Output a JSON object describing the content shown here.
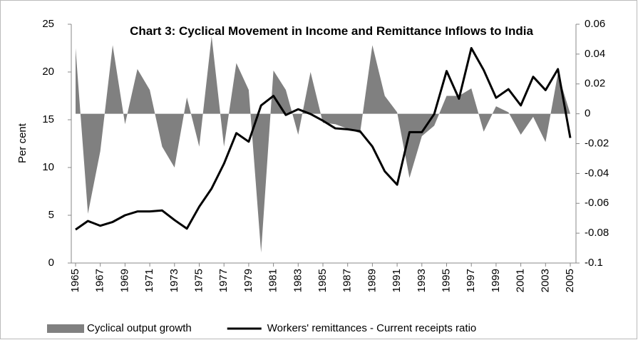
{
  "chart_data": {
    "type": "area-line",
    "title": "Chart 3: Cyclical Movement in Income and Remittance Inflows to India",
    "y_label": "Per cent",
    "x": [
      1965,
      1966,
      1967,
      1968,
      1969,
      1970,
      1971,
      1972,
      1973,
      1974,
      1975,
      1976,
      1977,
      1978,
      1979,
      1980,
      1981,
      1982,
      1983,
      1984,
      1985,
      1986,
      1987,
      1988,
      1989,
      1990,
      1991,
      1992,
      1993,
      1994,
      1995,
      1996,
      1997,
      1998,
      1999,
      2000,
      2001,
      2002,
      2003,
      2004,
      2005
    ],
    "xlim": [
      1965,
      2005
    ],
    "xticks": [
      1965,
      1967,
      1969,
      1971,
      1973,
      1975,
      1977,
      1979,
      1981,
      1983,
      1985,
      1987,
      1989,
      1991,
      1993,
      1995,
      1997,
      1999,
      2001,
      2003,
      2005
    ],
    "ylim": [
      0,
      25
    ],
    "yticks": [
      0,
      5,
      10,
      15,
      20,
      25
    ],
    "y2lim": [
      -0.1,
      0.06
    ],
    "y2ticks": [
      -0.1,
      -0.08,
      -0.06,
      -0.04,
      -0.02,
      0,
      0.02,
      0.04,
      0.06
    ],
    "series": [
      {
        "name": "Cyclical output growth",
        "color": "#808080",
        "kind": "area",
        "axis": "y2",
        "values": [
          0.044,
          -0.067,
          -0.025,
          0.046,
          -0.007,
          0.03,
          0.016,
          -0.022,
          -0.036,
          0.011,
          -0.022,
          0.052,
          -0.022,
          0.034,
          0.016,
          -0.093,
          0.029,
          0.016,
          -0.014,
          0.028,
          -0.006,
          -0.007,
          -0.01,
          -0.013,
          0.046,
          0.012,
          0.001,
          -0.043,
          -0.015,
          -0.008,
          0.012,
          0.012,
          0.017,
          -0.012,
          0.005,
          0.001,
          -0.014,
          -0.002,
          -0.019,
          0.027,
          0
        ]
      },
      {
        "name": "Workers' remittances - Current receipts ratio",
        "color": "#000000",
        "kind": "line",
        "values": [
          3.5,
          4.4,
          3.9,
          4.3,
          5.0,
          5.4,
          5.4,
          5.5,
          4.5,
          3.6,
          5.9,
          7.8,
          10.4,
          13.6,
          12.7,
          16.5,
          17.5,
          15.5,
          16.1,
          15.6,
          14.9,
          14.1,
          14.0,
          13.8,
          12.2,
          9.6,
          8.2,
          13.7,
          13.7,
          15.6,
          20.1,
          17.2,
          22.5,
          20.2,
          17.3,
          18.2,
          16.5,
          19.5,
          18.1,
          20.3,
          13.1
        ]
      }
    ],
    "legend": "bottom"
  }
}
